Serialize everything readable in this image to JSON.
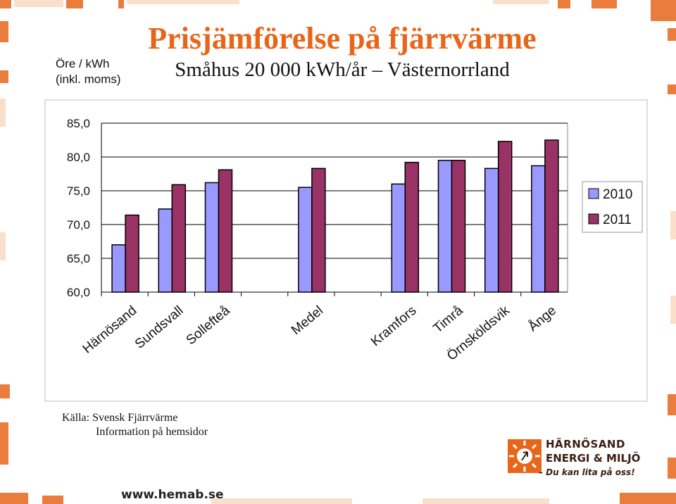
{
  "header": {
    "title": "Prisjämförelse på fjärrvärme",
    "subtitle": "Småhus 20 000 kWh/år – Västernorrland",
    "unit_line1": "Öre / kWh",
    "unit_line2": "(inkl. moms)"
  },
  "footer": {
    "source_line1": "Källa: Svensk Fjärrvärme",
    "source_line2": "Information på hemsidor",
    "website": "www.hemab.se"
  },
  "logo": {
    "line1": "HÄRNÖSAND",
    "line2": "ENERGI & MILJÖ",
    "tagline": "– Du kan lita på oss!",
    "color": "#e8661a"
  },
  "colors": {
    "accent": "#e8661a",
    "series_2010": "#9999ff",
    "series_2011": "#993366"
  },
  "chart_data": {
    "type": "bar",
    "title": "Prisjämförelse på fjärrvärme",
    "ylabel": "Öre / kWh (inkl. moms)",
    "ylim": [
      60,
      85
    ],
    "yticks": [
      "85,0",
      "80,0",
      "75,0",
      "70,0",
      "65,0",
      "60,0"
    ],
    "ytick_values": [
      85,
      80,
      75,
      70,
      65,
      60
    ],
    "categories": [
      "Härnösand",
      "Sundsvall",
      "Sollefteå",
      "",
      "Medel",
      "",
      "Kramfors",
      "Timrå",
      "Örnsköldsvik",
      "Ånge"
    ],
    "series": [
      {
        "name": "2010",
        "values": [
          67.0,
          72.3,
          76.2,
          null,
          75.5,
          null,
          76.0,
          79.5,
          78.3,
          78.7
        ]
      },
      {
        "name": "2011",
        "values": [
          71.4,
          75.9,
          78.1,
          null,
          78.3,
          null,
          79.2,
          79.5,
          82.3,
          82.5
        ]
      }
    ],
    "grid": true,
    "legend": "right"
  }
}
